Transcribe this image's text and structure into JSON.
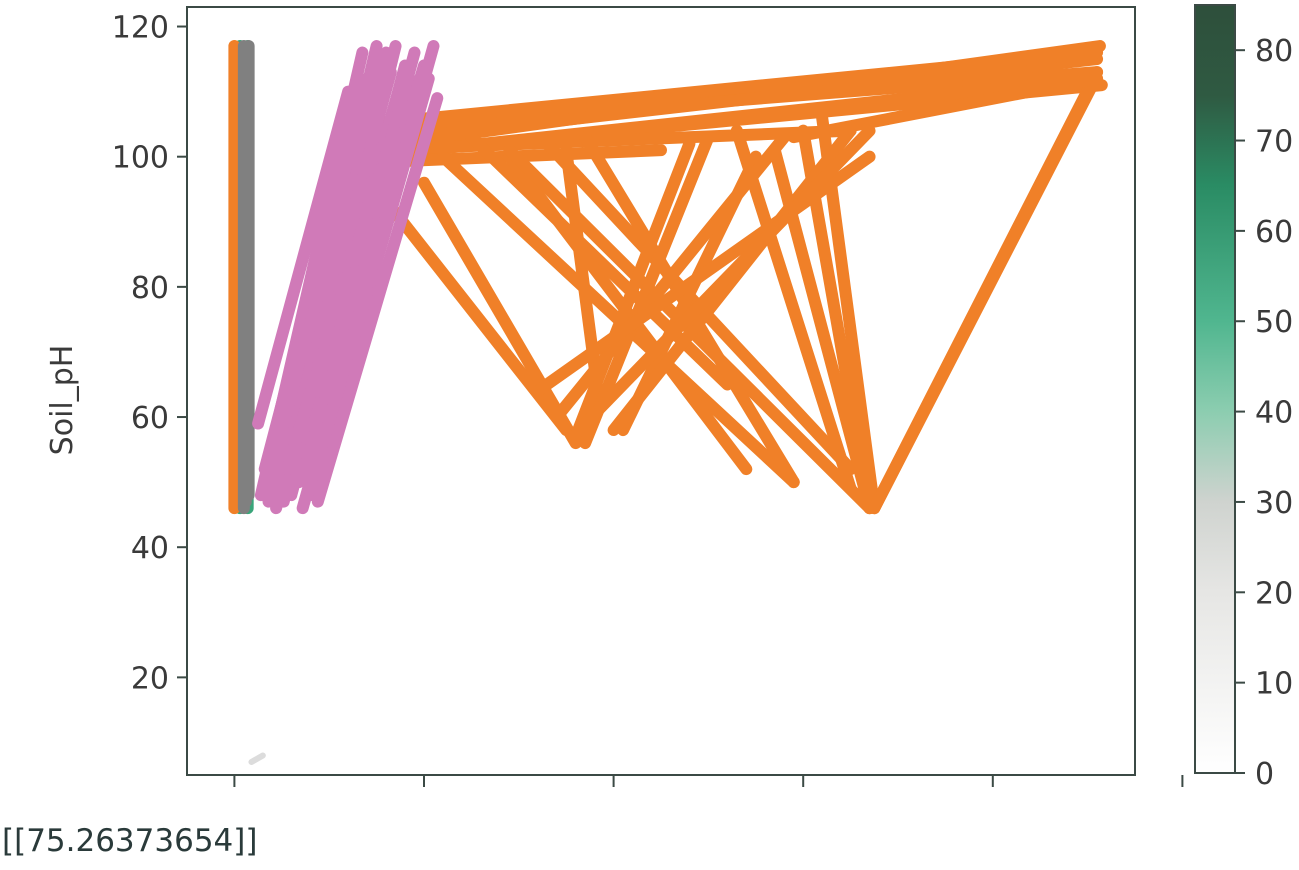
{
  "chart_data": {
    "type": "line",
    "ylabel": "Soil_pH",
    "xlabel": "",
    "title": "",
    "ylim": [
      5,
      123
    ],
    "xlim": [
      0,
      100
    ],
    "yticks": [
      20,
      40,
      60,
      80,
      100,
      120
    ],
    "xticks": [
      5,
      25,
      45,
      65,
      85,
      105
    ],
    "grid": false,
    "legend": "none",
    "series_colors": {
      "green_band": "#3aa57a",
      "orange_band": "#f08028",
      "gray_band": "#808080",
      "pink_band": "#d07ab8",
      "faint": "#dcdcdc"
    },
    "series": [
      {
        "color_key": "green_band",
        "segments": [
          [
            [
              5.6,
              46
            ],
            [
              5.6,
              117
            ]
          ],
          [
            [
              6.4,
              46
            ],
            [
              6.4,
              117
            ]
          ]
        ]
      },
      {
        "color_key": "orange_band",
        "segments": [
          [
            [
              5.0,
              46
            ],
            [
              5.0,
              117
            ]
          ],
          [
            [
              5.3,
              48
            ],
            [
              5.3,
              116
            ]
          ]
        ]
      },
      {
        "color_key": "gray_band",
        "segments": [
          [
            [
              6.0,
              46
            ],
            [
              6.0,
              117
            ]
          ],
          [
            [
              6.2,
              47
            ],
            [
              6.2,
              116
            ]
          ],
          [
            [
              6.5,
              48
            ],
            [
              6.5,
              117
            ]
          ]
        ]
      },
      {
        "color_key": "orange_band",
        "segments": [
          [
            [
              17.0,
              101
            ],
            [
              96.3,
              117
            ]
          ],
          [
            [
              17.0,
              104
            ],
            [
              96.0,
              113
            ]
          ],
          [
            [
              17.5,
              100
            ],
            [
              96.5,
              111
            ]
          ],
          [
            [
              18.0,
              102
            ],
            [
              96.0,
              115
            ]
          ],
          [
            [
              18.5,
              100
            ],
            [
              95.5,
              112
            ]
          ],
          [
            [
              19.0,
              105
            ],
            [
              96.0,
              116
            ]
          ],
          [
            [
              17.3,
              99
            ],
            [
              50.0,
              101
            ]
          ],
          [
            [
              19.0,
              101
            ],
            [
              70.0,
              104
            ]
          ],
          [
            [
              19.5,
              96
            ],
            [
              40.0,
              58
            ]
          ],
          [
            [
              25.0,
              96
            ],
            [
              41.0,
              56
            ]
          ],
          [
            [
              27.0,
              100
            ],
            [
              64.0,
              50
            ]
          ],
          [
            [
              30.0,
              103
            ],
            [
              57.0,
              65
            ]
          ],
          [
            [
              34.0,
              100
            ],
            [
              59.0,
              52
            ]
          ],
          [
            [
              34.0,
              101
            ],
            [
              72.0,
              46
            ]
          ],
          [
            [
              38.0,
              102
            ],
            [
              70.0,
              52
            ]
          ],
          [
            [
              40.0,
              101
            ],
            [
              43.5,
              62
            ]
          ],
          [
            [
              42.0,
              103
            ],
            [
              64.0,
              50
            ]
          ],
          [
            [
              53.0,
              102
            ],
            [
              41.0,
              57
            ]
          ],
          [
            [
              55.0,
              103
            ],
            [
              42.0,
              56
            ]
          ],
          [
            [
              58.0,
              104
            ],
            [
              70.0,
              49
            ]
          ],
          [
            [
              60.0,
              100
            ],
            [
              46.0,
              58
            ]
          ],
          [
            [
              62.0,
              101
            ],
            [
              72.0,
              46
            ]
          ],
          [
            [
              63.0,
              103
            ],
            [
              39.0,
              60
            ]
          ],
          [
            [
              65.0,
              104
            ],
            [
              72.0,
              46
            ]
          ],
          [
            [
              67.0,
              106
            ],
            [
              72.5,
              46
            ]
          ],
          [
            [
              70.0,
              104
            ],
            [
              45.0,
              58
            ]
          ],
          [
            [
              72.0,
              100
            ],
            [
              37.0,
              64
            ]
          ],
          [
            [
              72.5,
              46
            ],
            [
              96.0,
              113
            ]
          ],
          [
            [
              72.5,
              46
            ],
            [
              95.5,
              111
            ]
          ],
          [
            [
              72.0,
              104
            ],
            [
              42.0,
              59
            ]
          ],
          [
            [
              96.0,
              112
            ],
            [
              64.0,
              103
            ]
          ]
        ]
      },
      {
        "color_key": "pink_band",
        "segments": [
          [
            [
              7.5,
              59
            ],
            [
              17.0,
              110
            ]
          ],
          [
            [
              7.8,
              48
            ],
            [
              18.5,
              116
            ]
          ],
          [
            [
              8.2,
              52
            ],
            [
              19.0,
              112
            ]
          ],
          [
            [
              8.6,
              47
            ],
            [
              20.0,
              117
            ]
          ],
          [
            [
              9.0,
              55
            ],
            [
              20.5,
              110
            ]
          ],
          [
            [
              9.4,
              46
            ],
            [
              21.0,
              116
            ]
          ],
          [
            [
              9.8,
              50
            ],
            [
              21.5,
              113
            ]
          ],
          [
            [
              10.2,
              47
            ],
            [
              22.0,
              117
            ]
          ],
          [
            [
              10.6,
              52
            ],
            [
              22.5,
              111
            ]
          ],
          [
            [
              11.0,
              48
            ],
            [
              23.0,
              114
            ]
          ],
          [
            [
              11.4,
              56
            ],
            [
              23.5,
              112
            ]
          ],
          [
            [
              11.8,
              50
            ],
            [
              24.0,
              116
            ]
          ],
          [
            [
              12.2,
              46
            ],
            [
              24.5,
              110
            ]
          ],
          [
            [
              12.6,
              53
            ],
            [
              25.0,
              114
            ]
          ],
          [
            [
              13.0,
              48
            ],
            [
              25.5,
              112
            ]
          ],
          [
            [
              13.4,
              51
            ],
            [
              26.0,
              117
            ]
          ],
          [
            [
              13.8,
              47
            ],
            [
              26.4,
              109
            ]
          ]
        ]
      },
      {
        "color_key": "faint",
        "segments": [
          [
            [
              6.8,
              7
            ],
            [
              8.0,
              8
            ]
          ]
        ]
      }
    ]
  },
  "colorbar": {
    "ticks": [
      0,
      10,
      20,
      30,
      40,
      50,
      60,
      70,
      80
    ],
    "range": [
      0,
      85
    ],
    "stops": [
      {
        "v": 0,
        "c": "#ffffff"
      },
      {
        "v": 20,
        "c": "#e6e6e4"
      },
      {
        "v": 30,
        "c": "#cfd3cf"
      },
      {
        "v": 40,
        "c": "#8ccdb0"
      },
      {
        "v": 50,
        "c": "#50b68f"
      },
      {
        "v": 65,
        "c": "#2a8c64"
      },
      {
        "v": 75,
        "c": "#2f5a42"
      },
      {
        "v": 85,
        "c": "#2e4f3b"
      }
    ]
  },
  "output_text": "[[75.26373654]]"
}
